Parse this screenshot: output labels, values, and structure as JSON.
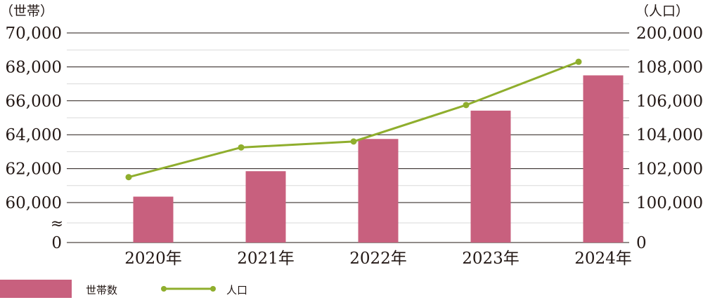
{
  "chart_data": {
    "type": "bar+line",
    "categories": [
      "2020年",
      "2021年",
      "2022年",
      "2023年",
      "2024年"
    ],
    "series": [
      {
        "name": "世帯数",
        "type": "bar",
        "axis": "left",
        "values": [
          60350,
          61850,
          63750,
          65420,
          67500
        ]
      },
      {
        "name": "人口",
        "type": "line",
        "axis": "right",
        "values": [
          101500,
          103250,
          103600,
          105750,
          108300
        ]
      }
    ],
    "left_axis": {
      "unit": "（世帯）",
      "ticks": [
        0,
        60000,
        62000,
        64000,
        66000,
        68000,
        70000
      ],
      "tick_labels": [
        "0",
        "60,000",
        "62,000",
        "64,000",
        "66,000",
        "68,000",
        "70,000"
      ],
      "break_symbol": "≈"
    },
    "right_axis": {
      "unit": "（人口）",
      "ticks": [
        0,
        100000,
        102000,
        104000,
        106000,
        108000,
        200000
      ],
      "tick_labels": [
        "0",
        "100,000",
        "102,000",
        "104,000",
        "106,000",
        "108,000",
        "200,000"
      ]
    },
    "gridlines": true,
    "legend_position": "bottom-left",
    "colors": {
      "bar": "#c8607e",
      "line": "#8fae2d",
      "grid": "#231815",
      "minor_grid": "#d9d9d9"
    }
  },
  "legend": {
    "bar_label": "世帯数",
    "line_label": "人口"
  }
}
